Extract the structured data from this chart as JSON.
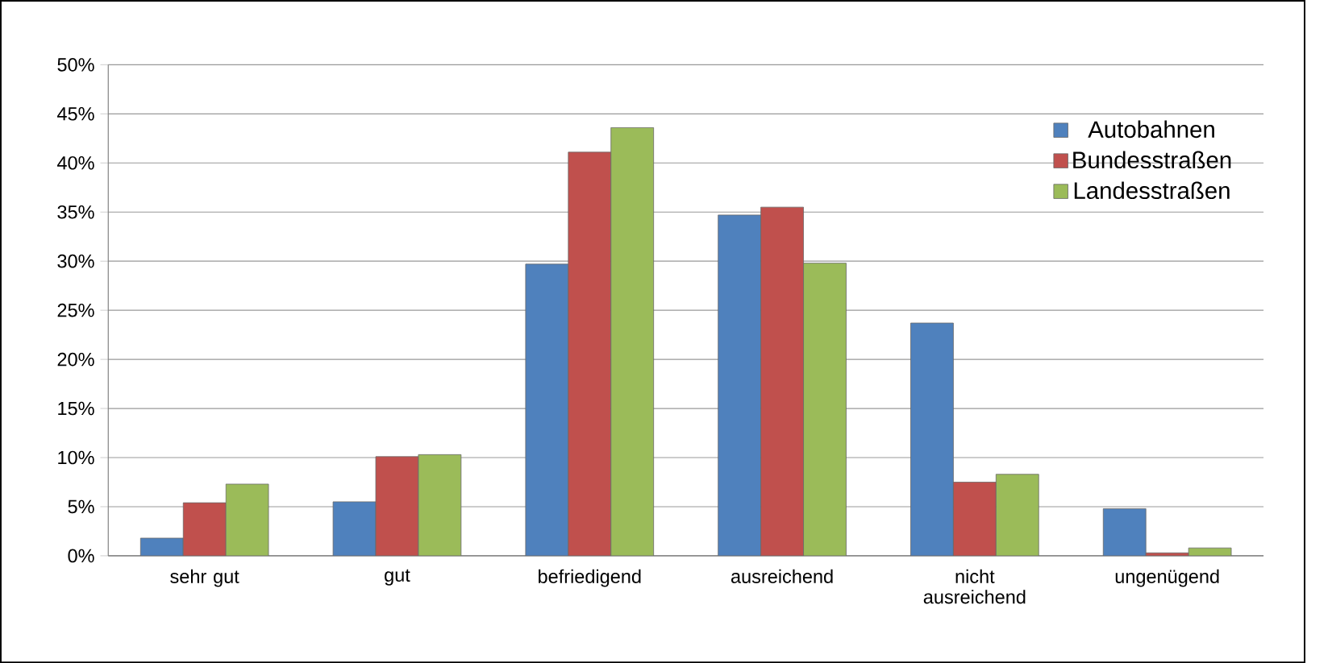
{
  "chart_data": {
    "type": "bar",
    "categories": [
      "sehr gut",
      "gut",
      "befriedigend",
      "ausreichend",
      "nicht ausreichend",
      "ungenügend"
    ],
    "series": [
      {
        "name": "Autobahnen",
        "color": "#4f81bd",
        "values": [
          1.8,
          5.5,
          29.7,
          34.7,
          23.7,
          4.8
        ]
      },
      {
        "name": "Bundesstraßen",
        "color": "#c0504d",
        "values": [
          5.4,
          10.1,
          41.1,
          35.5,
          7.5,
          0.3
        ]
      },
      {
        "name": "Landesstraßen",
        "color": "#9bbb59",
        "values": [
          7.3,
          10.3,
          43.6,
          29.8,
          8.3,
          0.8
        ]
      }
    ],
    "ylim": [
      0,
      50
    ],
    "yticks": [
      {
        "value": 0,
        "label": "0%"
      },
      {
        "value": 5,
        "label": "5%"
      },
      {
        "value": 10,
        "label": "10%"
      },
      {
        "value": 15,
        "label": "15%"
      },
      {
        "value": 20,
        "label": "20%"
      },
      {
        "value": 25,
        "label": "25%"
      },
      {
        "value": 30,
        "label": "30%"
      },
      {
        "value": 35,
        "label": "35%"
      },
      {
        "value": 40,
        "label": "40%"
      },
      {
        "value": 45,
        "label": "45%"
      },
      {
        "value": 50,
        "label": "50%"
      }
    ],
    "grid": "y",
    "legend": "top right"
  }
}
